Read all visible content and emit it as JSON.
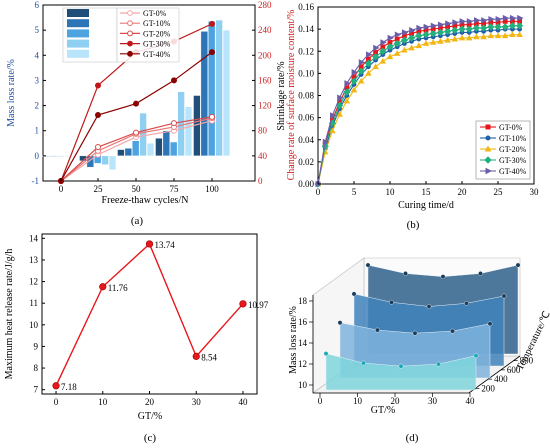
{
  "chart_data": [
    {
      "id": "a",
      "type": "bar",
      "panel_label": "(a)",
      "xlabel": "Freeze-thaw cycles/N",
      "ylabel": "Mass loss rate/%",
      "y2label": "Change rate of surface moisture content/%",
      "categories": [
        "0",
        "25",
        "50",
        "75",
        "100"
      ],
      "ylim": [
        -1,
        6
      ],
      "yticks": [
        "-1",
        "0",
        "1",
        "2",
        "3",
        "4",
        "5",
        "6"
      ],
      "y2lim": [
        0,
        280
      ],
      "y2ticks": [
        "0",
        "40",
        "80",
        "120",
        "160",
        "200",
        "240",
        "280"
      ],
      "legend": [
        "GT-0%",
        "GT-10%",
        "GT-20%",
        "GT-30%",
        "GT-40%"
      ],
      "bar_colors": [
        "#1f4e79",
        "#2e75b6",
        "#4da3e0",
        "#8fd0f2",
        "#b9e5fa"
      ],
      "line_colors": [
        "#f4a7a7",
        "#e87878",
        "#d94b4b",
        "#c01818",
        "#8b0000"
      ],
      "series": [
        {
          "name": "GT-0%",
          "values": [
            0.0,
            -0.2,
            0.25,
            0.7,
            2.4
          ]
        },
        {
          "name": "GT-10%",
          "values": [
            0.0,
            -0.45,
            0.3,
            1.0,
            4.95
          ]
        },
        {
          "name": "GT-20%",
          "values": [
            0.0,
            -0.3,
            0.6,
            0.55,
            5.35
          ]
        },
        {
          "name": "GT-30%",
          "values": [
            0.0,
            -0.35,
            1.7,
            2.55,
            5.4
          ]
        },
        {
          "name": "GT-40%",
          "values": [
            0.0,
            -0.55,
            0.5,
            1.95,
            5.0
          ]
        }
      ],
      "series_y2": [
        {
          "name": "GT-0%",
          "values": [
            0,
            42,
            70,
            80,
            96
          ]
        },
        {
          "name": "GT-10%",
          "values": [
            0,
            48,
            75,
            86,
            100
          ]
        },
        {
          "name": "GT-20%",
          "values": [
            0,
            54,
            77,
            92,
            102
          ]
        },
        {
          "name": "GT-30%",
          "values": [
            0,
            152,
            205,
            222,
            250
          ]
        },
        {
          "name": "GT-40%",
          "values": [
            0,
            105,
            123,
            160,
            205
          ]
        }
      ]
    },
    {
      "id": "b",
      "type": "line",
      "panel_label": "(b)",
      "xlabel": "Curing time/d",
      "ylabel": "Shrinkage rate/%",
      "xlim": [
        0,
        30
      ],
      "xticks": [
        "0",
        "5",
        "10",
        "15",
        "20",
        "25",
        "30"
      ],
      "ylim": [
        0,
        0.16
      ],
      "yticks": [
        "0.00",
        "0.02",
        "0.04",
        "0.06",
        "0.08",
        "0.10",
        "0.12",
        "0.14",
        "0.16"
      ],
      "x": [
        0,
        1,
        2,
        3,
        4,
        5,
        6,
        7,
        8,
        9,
        10,
        11,
        12,
        13,
        14,
        15,
        16,
        17,
        18,
        19,
        20,
        21,
        22,
        23,
        24,
        25,
        26,
        27,
        28
      ],
      "series": [
        {
          "name": "GT-0%",
          "color": "#e8171b",
          "marker": "square",
          "values": [
            0,
            0.036,
            0.058,
            0.074,
            0.087,
            0.097,
            0.106,
            0.113,
            0.119,
            0.124,
            0.128,
            0.131,
            0.134,
            0.136,
            0.138,
            0.139,
            0.14,
            0.141,
            0.142,
            0.143,
            0.144,
            0.144,
            0.145,
            0.145,
            0.146,
            0.146,
            0.147,
            0.147,
            0.147
          ]
        },
        {
          "name": "GT-10%",
          "color": "#1f5fa6",
          "marker": "circle",
          "values": [
            0,
            0.032,
            0.052,
            0.068,
            0.08,
            0.09,
            0.099,
            0.106,
            0.112,
            0.117,
            0.121,
            0.124,
            0.127,
            0.129,
            0.131,
            0.132,
            0.133,
            0.134,
            0.135,
            0.136,
            0.137,
            0.137,
            0.138,
            0.138,
            0.139,
            0.139,
            0.14,
            0.14,
            0.14
          ]
        },
        {
          "name": "GT-20%",
          "color": "#f2b614",
          "marker": "triangle",
          "values": [
            0,
            0.029,
            0.048,
            0.063,
            0.075,
            0.085,
            0.093,
            0.1,
            0.106,
            0.111,
            0.115,
            0.118,
            0.121,
            0.123,
            0.125,
            0.127,
            0.128,
            0.129,
            0.13,
            0.131,
            0.132,
            0.132,
            0.133,
            0.133,
            0.134,
            0.134,
            0.134,
            0.135,
            0.135
          ]
        },
        {
          "name": "GT-30%",
          "color": "#22b07d",
          "marker": "diamond",
          "values": [
            0,
            0.034,
            0.055,
            0.071,
            0.083,
            0.093,
            0.102,
            0.109,
            0.115,
            0.12,
            0.124,
            0.127,
            0.13,
            0.132,
            0.134,
            0.135,
            0.136,
            0.137,
            0.138,
            0.139,
            0.14,
            0.14,
            0.141,
            0.141,
            0.142,
            0.142,
            0.142,
            0.143,
            0.143
          ]
        },
        {
          "name": "GT-40%",
          "color": "#6b5ea8",
          "marker": "triangle-right",
          "values": [
            0,
            0.038,
            0.062,
            0.078,
            0.091,
            0.101,
            0.11,
            0.117,
            0.123,
            0.128,
            0.132,
            0.135,
            0.137,
            0.139,
            0.141,
            0.142,
            0.143,
            0.144,
            0.145,
            0.146,
            0.147,
            0.147,
            0.148,
            0.148,
            0.149,
            0.149,
            0.15,
            0.15,
            0.15
          ]
        }
      ]
    },
    {
      "id": "c",
      "type": "line",
      "panel_label": "(c)",
      "xlabel": "GT/%",
      "ylabel": "Maximum heat release rate/J/g/h",
      "xlim": [
        -3,
        43
      ],
      "xticks": [
        "0",
        "10",
        "20",
        "30",
        "40"
      ],
      "ylim": [
        6.8,
        14.2
      ],
      "yticks": [
        "7",
        "8",
        "9",
        "10",
        "11",
        "12",
        "13",
        "14"
      ],
      "color": "#e8171b",
      "x": [
        0,
        10,
        20,
        30,
        40
      ],
      "values": [
        7.18,
        11.76,
        13.74,
        8.54,
        10.97
      ],
      "data_labels": [
        "7.18",
        "11.76",
        "13.74",
        "8.54",
        "10.97"
      ]
    },
    {
      "id": "d",
      "type": "surface",
      "panel_label": "(d)",
      "xlabel": "GT/%",
      "ylabel": "Temperature/℃",
      "zlabel": "Mass loss rate/%",
      "xticks": [
        "0",
        "10",
        "20",
        "30",
        "40"
      ],
      "yticks": [
        "200",
        "400",
        "600",
        "800"
      ],
      "zticks": [
        "10",
        "12",
        "14",
        "16",
        "18"
      ],
      "x": [
        0,
        10,
        20,
        30,
        40
      ],
      "series": [
        {
          "name": "800",
          "color": "#2e5f8a",
          "values": [
            17.8,
            17.0,
            16.7,
            17.0,
            17.8
          ]
        },
        {
          "name": "600",
          "color": "#3f82bb",
          "values": [
            16.2,
            15.4,
            15.0,
            15.3,
            16.0
          ]
        },
        {
          "name": "400",
          "color": "#7fb3dd",
          "values": [
            14.6,
            13.9,
            13.6,
            13.8,
            14.5
          ]
        },
        {
          "name": "200",
          "color": "#7fd6dc",
          "values": [
            12.8,
            11.9,
            11.6,
            11.8,
            12.6
          ]
        }
      ]
    }
  ]
}
